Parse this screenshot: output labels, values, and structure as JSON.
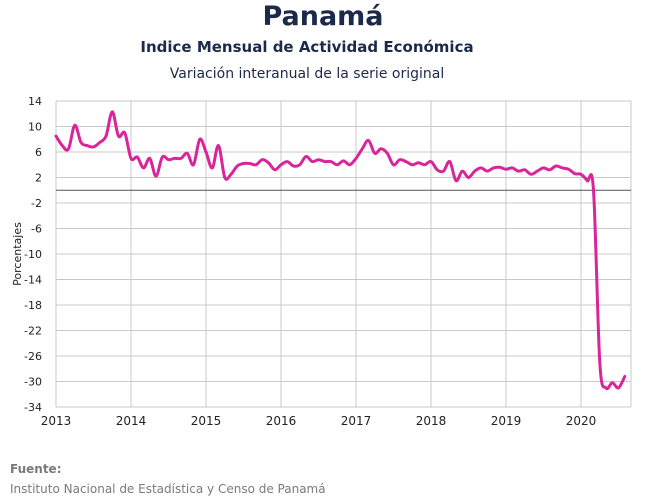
{
  "header": {
    "title": "Panamá",
    "subtitle": "Indice Mensual de  Actividad Económica",
    "subtitle2": "Variación interanual de la serie original"
  },
  "source": {
    "label": "Fuente:",
    "text": "Instituto Nacional de Estadística y Censo de Panamá"
  },
  "colors": {
    "line": "#d9259a",
    "grid": "#c8c8c8",
    "zero": "#555555",
    "text": "#1b2a4a"
  },
  "chart_data": {
    "type": "line",
    "title": "Indice Mensual de  Actividad Económica",
    "subtitle": "Variación interanual de la serie original",
    "xlabel": "",
    "ylabel": "Porcentajes",
    "ylim": [
      -34,
      14
    ],
    "yticks": [
      14,
      10,
      6,
      2,
      -2,
      -6,
      -10,
      -14,
      -18,
      -22,
      -26,
      -30,
      -34
    ],
    "xlim": [
      "2013-01",
      "2020-09"
    ],
    "xticks": [
      "2013",
      "2014",
      "2015",
      "2016",
      "2017",
      "2018",
      "2019",
      "2020"
    ],
    "grid": true,
    "series": [
      {
        "x": [
          "2013-01",
          "2013-02",
          "2013-03",
          "2013-04",
          "2013-05",
          "2013-06",
          "2013-07",
          "2013-08",
          "2013-09",
          "2013-10",
          "2013-11",
          "2013-12",
          "2014-01",
          "2014-02",
          "2014-03",
          "2014-04",
          "2014-05",
          "2014-06",
          "2014-07",
          "2014-08",
          "2014-09",
          "2014-10",
          "2014-11",
          "2014-12",
          "2015-01",
          "2015-02",
          "2015-03",
          "2015-04",
          "2015-05",
          "2015-06",
          "2015-07",
          "2015-08",
          "2015-09",
          "2015-10",
          "2015-11",
          "2015-12",
          "2016-01",
          "2016-02",
          "2016-03",
          "2016-04",
          "2016-05",
          "2016-06",
          "2016-07",
          "2016-08",
          "2016-09",
          "2016-10",
          "2016-11",
          "2016-12",
          "2017-01",
          "2017-02",
          "2017-03",
          "2017-04",
          "2017-05",
          "2017-06",
          "2017-07",
          "2017-08",
          "2017-09",
          "2017-10",
          "2017-11",
          "2017-12",
          "2018-01",
          "2018-02",
          "2018-03",
          "2018-04",
          "2018-05",
          "2018-06",
          "2018-07",
          "2018-08",
          "2018-09",
          "2018-10",
          "2018-11",
          "2018-12",
          "2019-01",
          "2019-02",
          "2019-03",
          "2019-04",
          "2019-05",
          "2019-06",
          "2019-07",
          "2019-08",
          "2019-09",
          "2019-10",
          "2019-11",
          "2019-12",
          "2020-01",
          "2020-02",
          "2020-03",
          "2020-04",
          "2020-05",
          "2020-06",
          "2020-07",
          "2020-08"
        ],
        "values": [
          8.5,
          7.0,
          6.5,
          10.2,
          7.5,
          7.0,
          6.8,
          7.5,
          8.5,
          12.3,
          8.5,
          9.0,
          5.0,
          5.2,
          3.5,
          5.0,
          2.2,
          5.2,
          4.8,
          5.0,
          5.0,
          5.8,
          4.0,
          8.0,
          6.0,
          3.5,
          7.0,
          2.0,
          2.5,
          3.8,
          4.2,
          4.2,
          4.0,
          4.8,
          4.3,
          3.2,
          4.0,
          4.5,
          3.8,
          4.0,
          5.3,
          4.5,
          4.8,
          4.5,
          4.5,
          4.0,
          4.6,
          4.0,
          5.0,
          6.5,
          7.8,
          5.8,
          6.5,
          5.8,
          4.0,
          4.8,
          4.5,
          4.0,
          4.3,
          4.0,
          4.5,
          3.2,
          3.0,
          4.5,
          1.5,
          3.0,
          2.0,
          3.0,
          3.5,
          3.0,
          3.5,
          3.6,
          3.3,
          3.5,
          3.0,
          3.2,
          2.5,
          3.0,
          3.5,
          3.2,
          3.8,
          3.5,
          3.3,
          2.6,
          2.5,
          1.5,
          0.0,
          -27.0,
          -31.0,
          -30.2,
          -31.0,
          -29.2
        ]
      }
    ]
  }
}
